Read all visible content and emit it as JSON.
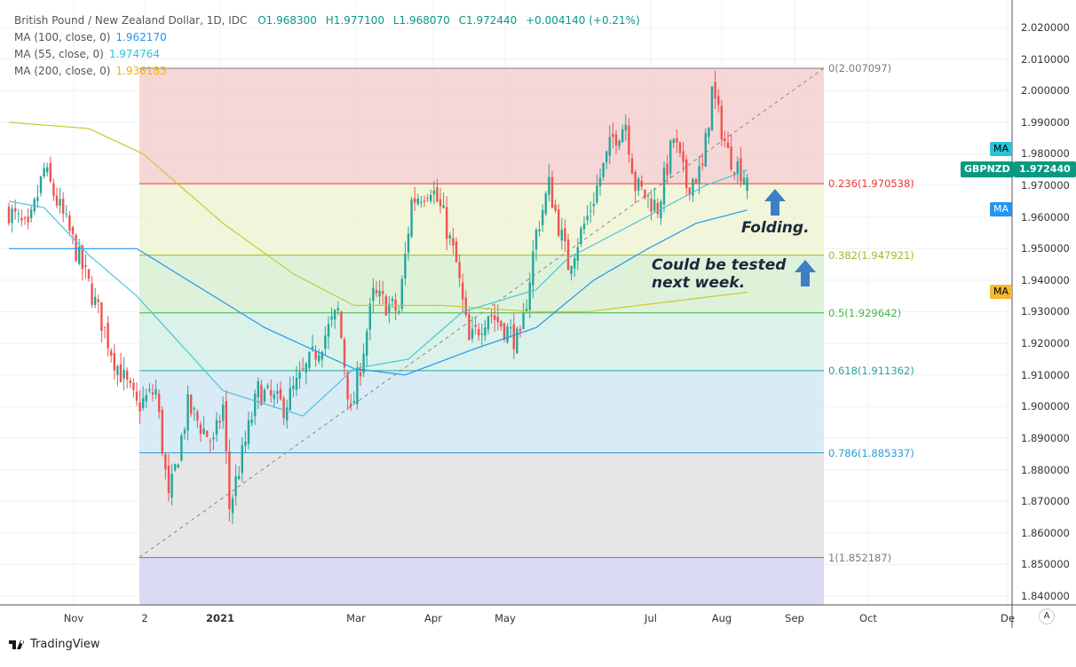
{
  "header": {
    "title": "British Pound / New Zealand Dollar, 1D, IDC",
    "open": "O1.968300",
    "high": "H1.977100",
    "low": "L1.968070",
    "close": "C1.972440",
    "change": "+0.004140 (+0.21%)"
  },
  "indicators": [
    {
      "label": "MA (100, close, 0)",
      "value": "1.962170",
      "color": "#2196f3"
    },
    {
      "label": "MA (55, close, 0)",
      "value": "1.974764",
      "color": "#26c6da"
    },
    {
      "label": "MA (200, close, 0)",
      "value": "1.936183",
      "color": "#f5b300"
    }
  ],
  "price_tags": {
    "ma": "MA",
    "symbol": "GBPNZD",
    "last": "1.972440"
  },
  "annotations": {
    "folding": "Folding.",
    "tested_line1": "Could be tested",
    "tested_line2": "next week."
  },
  "logo": "TradingView",
  "auto_button": "A",
  "colors": {
    "up": "#26a69a",
    "down": "#ef5350",
    "ma55": "#4cc3dc",
    "ma100": "#2196f3",
    "ma200": "#c8c832",
    "arrow": "#3d7fc4"
  },
  "chart_data": {
    "type": "candlestick",
    "symbol": "GBPNZD",
    "ylim": [
      1.835,
      2.025
    ],
    "y_ticks": [
      "2.020000",
      "2.010000",
      "2.000000",
      "1.990000",
      "1.980000",
      "1.970000",
      "1.960000",
      "1.950000",
      "1.940000",
      "1.930000",
      "1.920000",
      "1.910000",
      "1.900000",
      "1.890000",
      "1.880000",
      "1.870000",
      "1.860000",
      "1.850000",
      "1.840000"
    ],
    "x_ticks": [
      "Nov",
      "2",
      "2021",
      "Mar",
      "Apr",
      "May",
      "Jul",
      "Aug",
      "Sep",
      "Oct",
      "De"
    ],
    "bar_count": 232,
    "close_path": [
      [
        0,
        1.962
      ],
      [
        6,
        1.955
      ],
      [
        11,
        1.975
      ],
      [
        19,
        1.955
      ],
      [
        28,
        1.93
      ],
      [
        33,
        1.915
      ],
      [
        40,
        1.9
      ],
      [
        46,
        1.905
      ],
      [
        50,
        1.87
      ],
      [
        56,
        1.9
      ],
      [
        64,
        1.888
      ],
      [
        67,
        1.9
      ],
      [
        69,
        1.868
      ],
      [
        78,
        1.905
      ],
      [
        86,
        1.9
      ],
      [
        92,
        1.91
      ],
      [
        103,
        1.93
      ],
      [
        107,
        1.897
      ],
      [
        114,
        1.935
      ],
      [
        122,
        1.93
      ],
      [
        126,
        1.965
      ],
      [
        132,
        1.97
      ],
      [
        136,
        1.96
      ],
      [
        140,
        1.945
      ],
      [
        144,
        1.92
      ],
      [
        150,
        1.93
      ],
      [
        160,
        1.92
      ],
      [
        165,
        1.955
      ],
      [
        169,
        1.97
      ],
      [
        175,
        1.945
      ],
      [
        181,
        1.96
      ],
      [
        189,
        1.985
      ],
      [
        193,
        1.99
      ],
      [
        196,
        1.97
      ],
      [
        203,
        1.963
      ],
      [
        208,
        1.985
      ],
      [
        212,
        1.97
      ],
      [
        217,
        1.975
      ],
      [
        220,
        2.0
      ],
      [
        225,
        1.98
      ],
      [
        231,
        1.97244
      ]
    ],
    "ma55": [
      [
        0,
        1.965
      ],
      [
        11,
        1.963
      ],
      [
        25,
        1.948
      ],
      [
        40,
        1.935
      ],
      [
        67,
        1.905
      ],
      [
        92,
        1.897
      ],
      [
        108,
        1.912
      ],
      [
        125,
        1.915
      ],
      [
        142,
        1.93
      ],
      [
        165,
        1.937
      ],
      [
        175,
        1.947
      ],
      [
        192,
        1.956
      ],
      [
        205,
        1.963
      ],
      [
        218,
        1.97
      ],
      [
        231,
        1.9748
      ]
    ],
    "ma100": [
      [
        0,
        1.95
      ],
      [
        40,
        1.95
      ],
      [
        80,
        1.925
      ],
      [
        108,
        1.912
      ],
      [
        124,
        1.91
      ],
      [
        145,
        1.918
      ],
      [
        165,
        1.925
      ],
      [
        183,
        1.94
      ],
      [
        200,
        1.95
      ],
      [
        215,
        1.958
      ],
      [
        231,
        1.9622
      ]
    ],
    "ma200": [
      [
        0,
        1.99
      ],
      [
        25,
        1.988
      ],
      [
        42,
        1.98
      ],
      [
        67,
        1.958
      ],
      [
        89,
        1.942
      ],
      [
        108,
        1.932
      ],
      [
        136,
        1.932
      ],
      [
        164,
        1.93
      ],
      [
        181,
        1.93
      ],
      [
        197,
        1.932
      ],
      [
        231,
        1.9362
      ]
    ],
    "fibonacci": [
      {
        "ratio": 0,
        "price": 2.007097,
        "label": "0(2.007097)",
        "color": "#787b86",
        "fill": "#f4d0d0"
      },
      {
        "ratio": 0.236,
        "price": 1.970538,
        "label": "0.236(1.970538)",
        "color": "#e53935",
        "fill": "#eef4d4"
      },
      {
        "ratio": 0.382,
        "price": 1.947921,
        "label": "0.382(1.947921)",
        "color": "#9cba2a",
        "fill": "#d8f0d3"
      },
      {
        "ratio": 0.5,
        "price": 1.929642,
        "label": "0.5(1.929642)",
        "color": "#43b549",
        "fill": "#d3f0e5"
      },
      {
        "ratio": 0.618,
        "price": 1.911362,
        "label": "0.618(1.911362)",
        "color": "#26a69a",
        "fill": "#d2e8f3"
      },
      {
        "ratio": 0.786,
        "price": 1.885337,
        "label": "0.786(1.885337)",
        "color": "#2a9bd6",
        "fill": "#e2e2e2"
      },
      {
        "ratio": 1,
        "price": 1.852187,
        "label": "1(1.852187)",
        "color": "#787b86",
        "fill": "#d4d3f3"
      }
    ]
  }
}
